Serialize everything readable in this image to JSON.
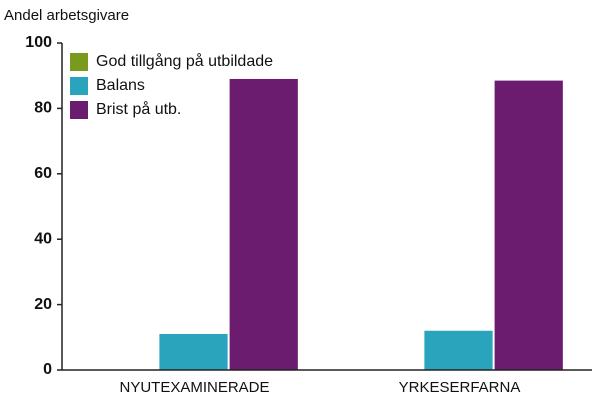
{
  "chart_data": {
    "type": "bar",
    "y_label": "Andel arbetsgivare",
    "categories": [
      "NYUTEXAMINERADE",
      "YRKESERFARNA"
    ],
    "series": [
      {
        "name": "God tillgång på utbildade",
        "color": "#7a9a1e",
        "values": [
          0,
          0
        ]
      },
      {
        "name": "Balans",
        "color": "#2aa3bd",
        "values": [
          11,
          12
        ]
      },
      {
        "name": "Brist på utb.",
        "color": "#6b1c6e",
        "values": [
          89,
          88.5
        ]
      }
    ],
    "ylim": [
      0,
      100
    ],
    "yticks": [
      0,
      20,
      40,
      60,
      80,
      100
    ],
    "grid": false,
    "legend": "upper left"
  }
}
